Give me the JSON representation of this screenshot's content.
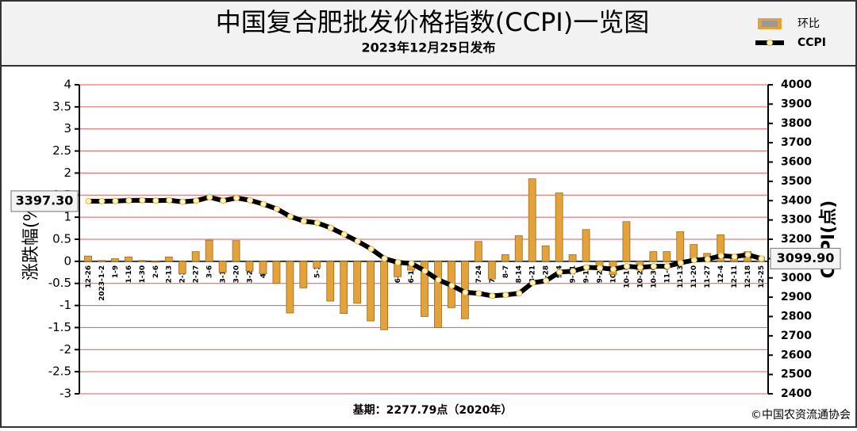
{
  "chart_data": {
    "type": "bar-line",
    "title": "中国复合肥批发价格指数(CCPI)一览图",
    "subtitle": "2023年12月25日发布",
    "y_label": "涨跌幅(%)",
    "y2_label": "CCPI(点)",
    "footer": "基期：2277.79点（2020年）",
    "source": "©中国农资流通协会",
    "categories": [
      "12-26",
      "2023-1-2",
      "1-9",
      "1-16",
      "1-30",
      "2-6",
      "2-13",
      "2-20",
      "2-27",
      "3-6",
      "3-13",
      "3-20",
      "3-27",
      "4-3",
      "4-10",
      "4-17",
      "4-24",
      "5-1",
      "5-8",
      "5-16",
      "5-22",
      "5-29",
      "6-5",
      "6-12",
      "6-19",
      "6-26",
      "7-3",
      "7-10",
      "7-17",
      "7-24",
      "7-31",
      "8-7",
      "8-14",
      "8-21",
      "8-28",
      "9-4",
      "9-11",
      "9-18",
      "9-25",
      "10-9",
      "10-16",
      "10-23",
      "10-30",
      "11-6",
      "11-13",
      "11-20",
      "11-27",
      "12-4",
      "12-11",
      "12-18",
      "12-25"
    ],
    "series": [
      {
        "name": "环比",
        "type": "bar",
        "color": "#e3a23a",
        "values": [
          0.12,
          0.02,
          0.06,
          0.1,
          0.02,
          -0.02,
          0.1,
          -0.28,
          0.22,
          0.48,
          -0.25,
          0.47,
          -0.22,
          -0.28,
          -0.5,
          -1.17,
          -0.6,
          -0.15,
          -0.9,
          -1.18,
          -0.95,
          -1.35,
          -1.55,
          -0.35,
          -0.2,
          -1.25,
          -1.5,
          -1.05,
          -1.3,
          0.45,
          -0.4,
          0.15,
          0.58,
          1.87,
          0.35,
          1.55,
          0.15,
          0.72,
          -0.1,
          -0.3,
          0.9,
          -0.2,
          0.22,
          0.22,
          0.67,
          0.38,
          0.18,
          0.6,
          0.1,
          0.22,
          0.1
        ]
      },
      {
        "name": "CCPI",
        "type": "line",
        "axis": "y2",
        "color": "#000000",
        "values": [
          3397.3,
          3397,
          3398,
          3401,
          3402,
          3400,
          3402,
          3394,
          3400,
          3418,
          3400,
          3414,
          3402,
          3382,
          3357,
          3318,
          3294,
          3285,
          3259,
          3225,
          3190,
          3150,
          3100,
          3080,
          3075,
          3036,
          2990,
          2960,
          2925,
          2920,
          2907,
          2912,
          2920,
          2975,
          2985,
          3030,
          3035,
          3055,
          3052,
          3045,
          3060,
          3055,
          3060,
          3060,
          3078,
          3092,
          3097,
          3115,
          3110,
          3120,
          3099.9
        ],
        "value_labels": [
          "3397.30",
          null,
          null,
          null,
          null,
          null,
          null,
          null,
          null,
          null,
          null,
          null,
          null,
          null,
          null,
          null,
          null,
          null,
          null,
          null,
          null,
          null,
          null,
          null,
          null,
          null,
          null,
          null,
          null,
          null,
          null,
          null,
          null,
          null,
          null,
          null,
          null,
          null,
          null,
          null,
          null,
          null,
          null,
          null,
          null,
          null,
          null,
          null,
          null,
          null,
          "3099.90"
        ]
      }
    ],
    "ylim": [
      -3,
      4
    ],
    "yticks": [
      -3,
      -2.5,
      -2,
      -1.5,
      -1,
      -0.5,
      0,
      0.5,
      1,
      1.5,
      2,
      2.5,
      3,
      3.5,
      4
    ],
    "y2lim": [
      2400,
      4000
    ],
    "y2ticks": [
      2400,
      2500,
      2600,
      2700,
      2800,
      2900,
      3000,
      3100,
      3200,
      3300,
      3400,
      3500,
      3600,
      3700,
      3800,
      3900,
      4000
    ],
    "grid": true,
    "grid_color": "#e05a5a",
    "legend": "top-right"
  }
}
